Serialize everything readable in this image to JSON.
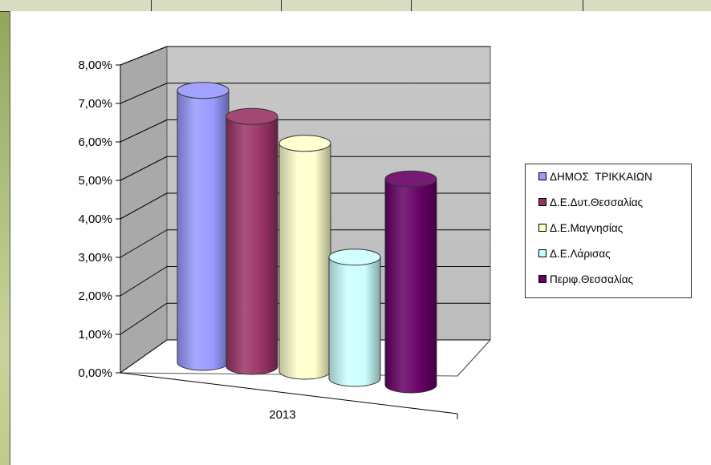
{
  "chart_data": {
    "type": "bar",
    "style": "3d-cylinder",
    "categories": [
      "2013"
    ],
    "series": [
      {
        "name": "ΔΗΜΟΣ  ΤΡΙΚΚΑΙΩΝ",
        "values": [
          7.4
        ],
        "color": "#9999ff"
      },
      {
        "name": "Δ.Ε.Δυτ.Θεσσαλίας",
        "values": [
          6.8
        ],
        "color": "#993366"
      },
      {
        "name": "Δ.Ε.Μαγνησίας",
        "values": [
          6.2
        ],
        "color": "#ffffcc"
      },
      {
        "name": "Δ.Ε.Λάρισας",
        "values": [
          3.3
        ],
        "color": "#ccffff"
      },
      {
        "name": "Περιφ.Θεσσαλίας",
        "values": [
          5.6
        ],
        "color": "#660066"
      }
    ],
    "y_ticks": [
      "0,00%",
      "1,00%",
      "2,00%",
      "3,00%",
      "4,00%",
      "5,00%",
      "6,00%",
      "7,00%",
      "8,00%"
    ],
    "ylim": [
      0,
      8
    ],
    "grid": true,
    "legend_position": "right"
  }
}
